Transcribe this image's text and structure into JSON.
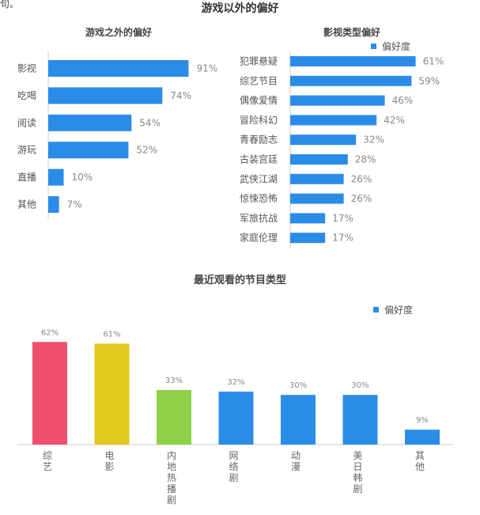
{
  "page": {
    "cropped_text": "句。",
    "main_title": "游戏以外的偏好",
    "bottom_title": "最近观看的节目类型"
  },
  "colors": {
    "bar_blue": "#2b8ce8",
    "bar_red": "#f0506e",
    "bar_yellow": "#e2c81a",
    "bar_green": "#8ed04a",
    "axis_gray": "#cccccc",
    "label_gray": "#888888"
  },
  "chart_data": [
    {
      "type": "bar",
      "orientation": "horizontal",
      "title": "游戏之外的偏好",
      "categories": [
        "影视",
        "吃喝",
        "阅读",
        "游玩",
        "直播",
        "其他"
      ],
      "values": [
        91,
        74,
        54,
        52,
        10,
        7
      ],
      "value_labels": [
        "91%",
        "74%",
        "54%",
        "52%",
        "10%",
        "7%"
      ],
      "xlim": [
        0,
        100
      ]
    },
    {
      "type": "bar",
      "orientation": "horizontal",
      "title": "影视类型偏好",
      "legend": "偏好度",
      "legend_position": "top-right",
      "categories": [
        "犯罪悬疑",
        "综艺节目",
        "偶像爱情",
        "冒险科幻",
        "青春励志",
        "古装宫廷",
        "武侠江湖",
        "惊悚恐怖",
        "军旅抗战",
        "家庭伦理"
      ],
      "values": [
        61,
        59,
        46,
        42,
        32,
        28,
        26,
        26,
        17,
        17
      ],
      "value_labels": [
        "61%",
        "59%",
        "46%",
        "42%",
        "32%",
        "28%",
        "26%",
        "26%",
        "17%",
        "17%"
      ],
      "xlim": [
        0,
        70
      ]
    },
    {
      "type": "bar",
      "orientation": "vertical",
      "title": "最近观看的节目类型",
      "legend": "偏好度",
      "legend_position": "top-right",
      "categories": [
        "综艺",
        "电影",
        "内地热播剧",
        "网络剧",
        "动漫",
        "美日韩剧",
        "其他"
      ],
      "values": [
        62,
        61,
        33,
        32,
        30,
        30,
        9
      ],
      "value_labels": [
        "62%",
        "61%",
        "33%",
        "32%",
        "30%",
        "30%",
        "9%"
      ],
      "bar_colors": [
        "#f0506e",
        "#e2c81a",
        "#8ed04a",
        "#2b8ce8",
        "#2b8ce8",
        "#2b8ce8",
        "#2b8ce8"
      ],
      "ylim": [
        0,
        65
      ]
    }
  ]
}
